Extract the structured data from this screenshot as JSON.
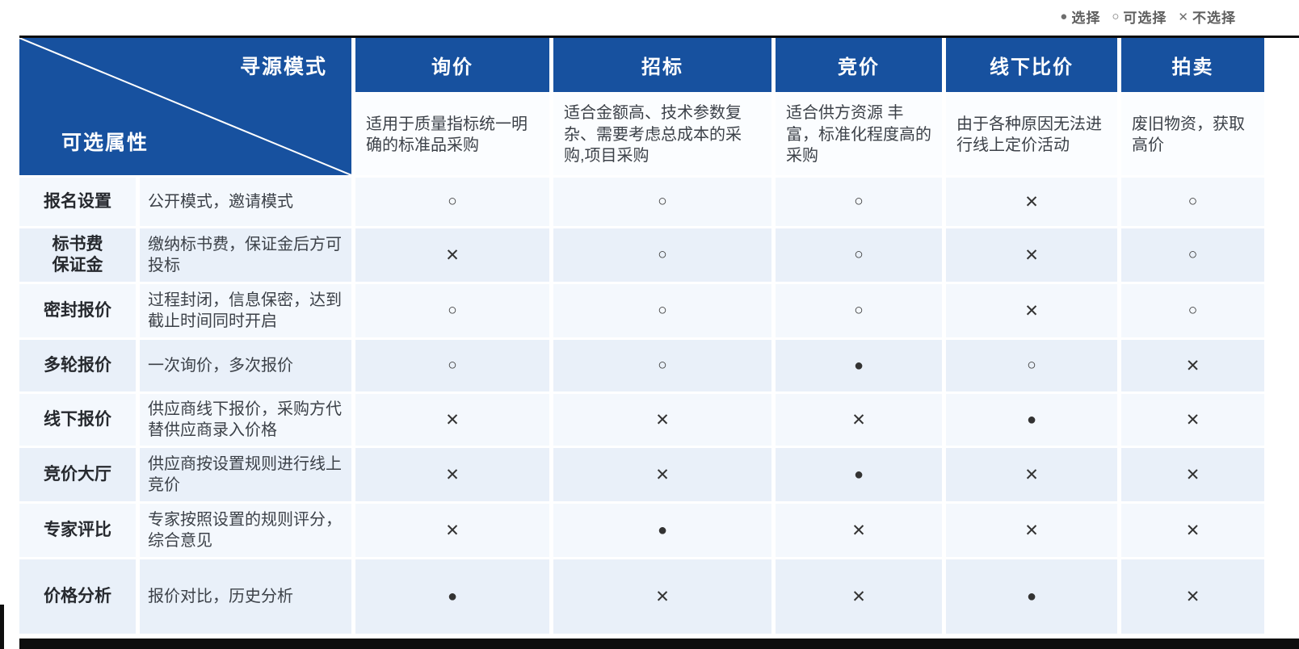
{
  "legend": {
    "items": [
      {
        "glyph": "●",
        "key": "selected",
        "label": "选择"
      },
      {
        "glyph": "○",
        "key": "optional",
        "label": "可选择"
      },
      {
        "glyph": "✕",
        "key": "no",
        "label": "不选择"
      }
    ]
  },
  "corner": {
    "top_right": "寻源模式",
    "bottom_left": "可选属性"
  },
  "columns": [
    {
      "name": "询价",
      "description": "适用于质量指标统一明确的标准品采购"
    },
    {
      "name": "招标",
      "description": "适合金额高、技术参数复杂、需要考虑总成本的采购,项目采购"
    },
    {
      "name": "竞价",
      "description": "适合供方资源 丰富，标准化程度高的采购"
    },
    {
      "name": "线下比价",
      "description": "由于各种原因无法进行线上定价活动"
    },
    {
      "name": "拍卖",
      "description": "废旧物资，获取高价"
    }
  ],
  "rows": [
    {
      "label": "报名设置",
      "description": "公开模式，邀请模式",
      "values": [
        "optional",
        "optional",
        "optional",
        "no",
        "optional"
      ]
    },
    {
      "label": "标书费\n保证金",
      "description": "缴纳标书费，保证金后方可投标",
      "values": [
        "no",
        "optional",
        "optional",
        "no",
        "optional"
      ]
    },
    {
      "label": "密封报价",
      "description": "过程封闭，信息保密，达到截止时间同时开启",
      "values": [
        "optional",
        "optional",
        "optional",
        "no",
        "optional"
      ]
    },
    {
      "label": "多轮报价",
      "description": "一次询价，多次报价",
      "values": [
        "optional",
        "optional",
        "selected",
        "optional",
        "no"
      ]
    },
    {
      "label": "线下报价",
      "description": "供应商线下报价，采购方代替供应商录入价格",
      "values": [
        "no",
        "no",
        "no",
        "selected",
        "no"
      ]
    },
    {
      "label": "竞价大厅",
      "description": "供应商按设置规则进行线上竞价",
      "values": [
        "no",
        "no",
        "selected",
        "no",
        "no"
      ]
    },
    {
      "label": "专家评比",
      "description": "专家按照设置的规则评分，综合意见",
      "values": [
        "no",
        "selected",
        "no",
        "no",
        "no"
      ]
    },
    {
      "label": "价格分析",
      "description": "报价对比，历史分析",
      "values": [
        "selected",
        "no",
        "no",
        "selected",
        "no"
      ]
    }
  ],
  "symbols": {
    "selected": "●",
    "optional": "○",
    "no": "✕"
  },
  "symbol_meanings": {
    "selected": "选择",
    "optional": "可选择",
    "no": "不选择"
  },
  "colors": {
    "header_blue": "#17519f",
    "stripe_light": "#f4f8fd",
    "stripe_dark": "#e9f0f9",
    "description_bg": "#fbfdff",
    "symbol": "#333333",
    "frame_black": "#0e0e0e"
  },
  "chart_data": {
    "type": "table",
    "title": "寻源模式 / 可选属性 对比矩阵",
    "legend": [
      {
        "symbol": "●",
        "meaning": "选择"
      },
      {
        "symbol": "○",
        "meaning": "可选择"
      },
      {
        "symbol": "✕",
        "meaning": "不选择"
      }
    ],
    "columns": [
      "询价",
      "招标",
      "竞价",
      "线下比价",
      "拍卖"
    ],
    "column_descriptions": [
      "适用于质量指标统一明确的标准品采购",
      "适合金额高、技术参数复杂、需要考虑总成本的采购,项目采购",
      "适合供方资源 丰富，标准化程度高的采购",
      "由于各种原因无法进行线上定价活动",
      "废旧物资，获取高价"
    ],
    "row_labels": [
      "报名设置",
      "标书费保证金",
      "密封报价",
      "多轮报价",
      "线下报价",
      "竞价大厅",
      "专家评比",
      "价格分析"
    ],
    "row_descriptions": [
      "公开模式，邀请模式",
      "缴纳标书费，保证金后方可投标",
      "过程封闭，信息保密，达到截止时间同时开启",
      "一次询价，多次报价",
      "供应商线下报价，采购方代替供应商录入价格",
      "供应商按设置规则进行线上竞价",
      "专家按照设置的规则评分，综合意见",
      "报价对比，历史分析"
    ],
    "matrix": [
      [
        "○",
        "○",
        "○",
        "✕",
        "○"
      ],
      [
        "✕",
        "○",
        "○",
        "✕",
        "○"
      ],
      [
        "○",
        "○",
        "○",
        "✕",
        "○"
      ],
      [
        "○",
        "○",
        "●",
        "○",
        "✕"
      ],
      [
        "✕",
        "✕",
        "✕",
        "●",
        "✕"
      ],
      [
        "✕",
        "✕",
        "●",
        "✕",
        "✕"
      ],
      [
        "✕",
        "●",
        "✕",
        "✕",
        "✕"
      ],
      [
        "●",
        "✕",
        "✕",
        "●",
        "✕"
      ]
    ]
  }
}
